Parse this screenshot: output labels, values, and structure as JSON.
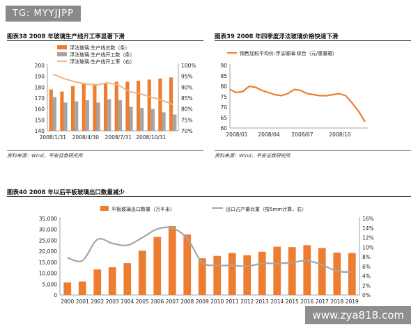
{
  "watermark": {
    "top": "TG: MYYJJPP",
    "bottom": "www.zya818.com"
  },
  "figures": {
    "f38": {
      "title": "图表38    2008 年玻璃生产线开工率显著下滑",
      "source": "资料来源：Wind，平安证券研究所"
    },
    "f39": {
      "title": "图表39    2008 年四季度浮法玻璃价格快速下滑",
      "source": "资料来源：Wind，平安证券研究所"
    },
    "f40": {
      "title": "图表40    2008 年以后平板玻璃出口数量减少"
    }
  },
  "colors": {
    "orange": "#ED7D31",
    "gray": "#A5A5A5",
    "peach": "#F4B183",
    "pinkline": "#F2A9A0",
    "lightline": "#F8CBAD",
    "axis": "#888888"
  },
  "chart_data": [
    {
      "id": "chart38",
      "type": "bar",
      "categories": [
        "2008/1/31",
        "",
        "",
        "2008/4/30",
        "",
        "",
        "2008/7/31",
        "",
        "",
        "2008/10/31",
        "",
        ""
      ],
      "series": [
        {
          "name": "浮法玻璃:生产线总数（条）",
          "kind": "bar",
          "axis": "left",
          "values": [
            178,
            176,
            181,
            184,
            183,
            184,
            185,
            185,
            186,
            187,
            188,
            189
          ]
        },
        {
          "name": "浮法玻璃:生产线开工数（条）",
          "kind": "bar",
          "axis": "left",
          "values": [
            171,
            166,
            167,
            168,
            166,
            169,
            168,
            162,
            161,
            160,
            157,
            155
          ]
        },
        {
          "name": "浮法玻璃:生产线开工率（右）",
          "kind": "line",
          "axis": "right",
          "values": [
            96,
            94,
            92.5,
            91.5,
            91,
            92,
            91,
            88,
            87,
            85.5,
            84,
            82
          ]
        }
      ],
      "x_tick_labels": [
        "2008/1/31",
        "2008/4/30",
        "2008/7/31",
        "2008/10/31"
      ],
      "yleft_ticks": [
        "140",
        "150",
        "160",
        "170",
        "180",
        "190",
        "200"
      ],
      "yright_ticks": [
        "70%",
        "75%",
        "80%",
        "85%",
        "90%",
        "95%",
        "100%"
      ],
      "ylim_left": [
        140,
        200
      ],
      "ylim_right": [
        70,
        100
      ]
    },
    {
      "id": "chart39",
      "type": "line",
      "series": [
        {
          "name": "销售加权平均价:浮法玻璃:综合（元/重量箱）",
          "values": [
            78.5,
            77,
            77.5,
            80,
            79.5,
            78,
            77,
            76,
            75.5,
            76.5,
            78.5,
            78,
            76.5,
            76,
            75.5,
            75.5,
            76,
            76.5,
            75.5,
            72,
            68,
            63
          ]
        }
      ],
      "x_tick_labels": [
        "2008/01",
        "2008/04",
        "2008/07",
        "2008/10"
      ],
      "y_ticks": [
        "60",
        "65",
        "70",
        "75",
        "80",
        "85",
        "90"
      ],
      "ylim": [
        60,
        90
      ]
    },
    {
      "id": "chart40",
      "type": "bar",
      "categories": [
        "2000",
        "2001",
        "2002",
        "2003",
        "2004",
        "2005",
        "2006",
        "2007",
        "2008",
        "2009",
        "2010",
        "2011",
        "2012",
        "2013",
        "2014",
        "2015",
        "2016",
        "2017",
        "2018",
        "2019"
      ],
      "series": [
        {
          "name": "平板玻璃出口数量（万平米）",
          "kind": "bar",
          "axis": "left",
          "values": [
            5800,
            6200,
            11700,
            12700,
            14600,
            20300,
            26600,
            31500,
            27700,
            16800,
            17900,
            19200,
            18200,
            19800,
            22100,
            21900,
            22800,
            21500,
            19400,
            19200
          ]
        },
        {
          "name": "出口占产量比重（按5mm计算，右）",
          "kind": "line",
          "axis": "right",
          "values": [
            7.8,
            7.2,
            11.6,
            10.8,
            10.4,
            12.0,
            13.8,
            14.0,
            11.8,
            6.8,
            6.2,
            6.2,
            6.0,
            6.6,
            6.6,
            6.8,
            7.2,
            6.3,
            5.0,
            4.8
          ]
        }
      ],
      "yleft_ticks": [
        "0",
        "5,000",
        "10,000",
        "15,000",
        "20,000",
        "25,000",
        "30,000",
        "35,000"
      ],
      "yright_ticks": [
        "0%",
        "2%",
        "4%",
        "6%",
        "8%",
        "10%",
        "12%",
        "14%",
        "16%"
      ],
      "ylim_left": [
        0,
        35000
      ],
      "ylim_right": [
        0,
        16
      ]
    }
  ]
}
